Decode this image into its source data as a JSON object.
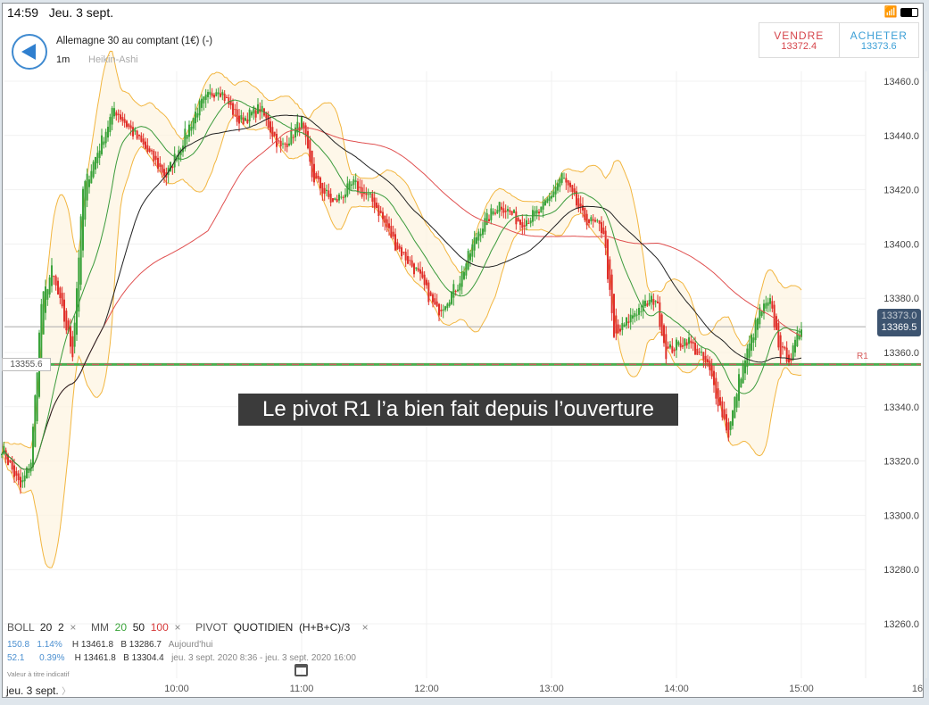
{
  "status_bar": {
    "time": "14:59",
    "date": "Jeu. 3 sept.",
    "icons": [
      "wifi-icon",
      "battery-icon"
    ]
  },
  "header": {
    "instrument": "Allemagne 30 au comptant (1€) (-)",
    "timeframe": "1m",
    "chart_type": "Heikin-Ashi"
  },
  "trade": {
    "sell_label": "VENDRE",
    "sell_price": "13372.4",
    "buy_label": "ACHETER",
    "buy_price": "13373.6"
  },
  "caption": "Le pivot R1 l’a bien fait depuis l’ouverture",
  "indicators": {
    "boll": "BOLL",
    "boll_p1": "20",
    "boll_p2": "2",
    "mm": "MM",
    "mm20": "20",
    "mm50": "50",
    "mm100": "100",
    "pivot": "PIVOT",
    "pivot_period": "QUOTIDIEN",
    "pivot_formula": "(H+B+C)/3",
    "close": "×"
  },
  "stats": [
    {
      "range": "150.8",
      "pct": "1.14%",
      "high": "H 13461.8",
      "low": "B 13286.7",
      "period": "Aujourd'hui"
    },
    {
      "range": "52.1",
      "pct": "0.39%",
      "high": "H 13461.8",
      "low": "B 13304.4",
      "period": "jeu. 3 sept. 2020 8:36 - jeu. 3 sept. 2020 16:00"
    }
  ],
  "note": "Valeur à titre indicatif",
  "date_label": "jeu. 3 sept.",
  "colors": {
    "up": "#3aa33a",
    "down": "#e0302a",
    "mm20": "#3a9a3a",
    "mm50": "#222222",
    "mm100": "#e05050",
    "boll": "#f2b640",
    "pivot": "#4caf50"
  },
  "chart_data": {
    "type": "candlestick",
    "ylim": [
      13250,
      13470
    ],
    "y_ticks": [
      "13460.0",
      "13440.0",
      "13420.0",
      "13400.0",
      "13380.0",
      "13360.0",
      "13340.0",
      "13320.0",
      "13300.0",
      "13280.0",
      "13260.0"
    ],
    "x_ticks": [
      "10:00",
      "11:00",
      "12:00",
      "13:00",
      "14:00",
      "15:00",
      "16"
    ],
    "current_price_labels": [
      "13373.0",
      "13369.5"
    ],
    "pivot_r1": {
      "label": "R1",
      "value": "13355.6"
    },
    "last_price": 13369.5,
    "price_path": [
      [
        "8:36",
        13325
      ],
      [
        "8:45",
        13310
      ],
      [
        "8:50",
        13320
      ],
      [
        "8:55",
        13378
      ],
      [
        "9:00",
        13390
      ],
      [
        "9:10",
        13360
      ],
      [
        "9:15",
        13420
      ],
      [
        "9:25",
        13440
      ],
      [
        "9:30",
        13450
      ],
      [
        "9:45",
        13435
      ],
      [
        "9:55",
        13425
      ],
      [
        "10:10",
        13450
      ],
      [
        "10:20",
        13458
      ],
      [
        "10:30",
        13445
      ],
      [
        "10:40",
        13450
      ],
      [
        "10:50",
        13435
      ],
      [
        "11:00",
        13445
      ],
      [
        "11:05",
        13425
      ],
      [
        "11:15",
        13415
      ],
      [
        "11:25",
        13422
      ],
      [
        "11:35",
        13415
      ],
      [
        "11:45",
        13400
      ],
      [
        "11:55",
        13390
      ],
      [
        "12:05",
        13375
      ],
      [
        "12:15",
        13385
      ],
      [
        "12:25",
        13405
      ],
      [
        "12:35",
        13415
      ],
      [
        "12:45",
        13408
      ],
      [
        "12:55",
        13412
      ],
      [
        "13:05",
        13425
      ],
      [
        "13:15",
        13410
      ],
      [
        "13:25",
        13405
      ],
      [
        "13:30",
        13365
      ],
      [
        "13:40",
        13375
      ],
      [
        "13:50",
        13380
      ],
      [
        "13:55",
        13360
      ],
      [
        "14:05",
        13365
      ],
      [
        "14:15",
        13355
      ],
      [
        "14:25",
        13330
      ],
      [
        "14:30",
        13350
      ],
      [
        "14:40",
        13375
      ],
      [
        "14:45",
        13378
      ],
      [
        "14:50",
        13360
      ],
      [
        "14:55",
        13358
      ],
      [
        "15:00",
        13370
      ]
    ]
  }
}
